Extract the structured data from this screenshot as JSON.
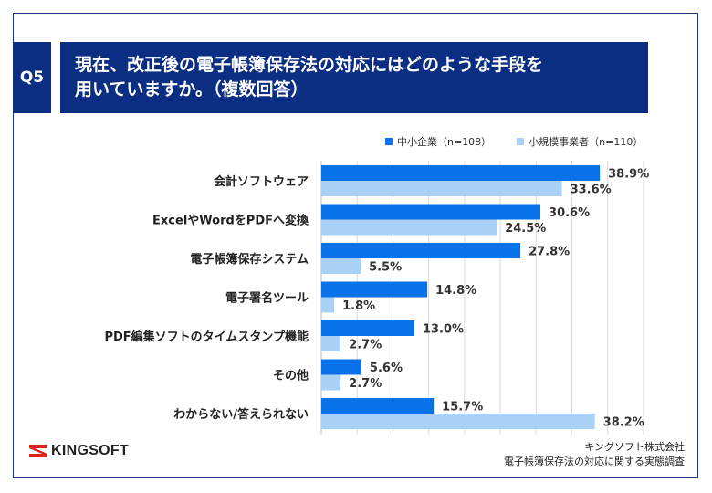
{
  "question": {
    "number": "Q5",
    "title_line1": "現在、改正後の電子帳簿保存法の対応にはどのような手段を",
    "title_line2": "用いていますか。（複数回答）"
  },
  "colors": {
    "series1": "#0a72e8",
    "series2": "#a9d1f5",
    "navy": "#0b2d82",
    "logo_red": "#d7261c"
  },
  "logo": {
    "text": "KINGSOFT"
  },
  "source": {
    "line1": "キングソフト株式会社",
    "line2": "電子帳簿保存法の対応に関する実態調査"
  },
  "chart_data": {
    "type": "bar",
    "orientation": "horizontal",
    "categories": [
      "会計ソフトウェア",
      "ExcelやWordをPDFへ変換",
      "電子帳簿保存システム",
      "電子署名ツール",
      "PDF編集ソフトのタイムスタンプ機能",
      "その他",
      "わからない/答えられない"
    ],
    "series": [
      {
        "name": "中小企業（n=108）",
        "values": [
          38.9,
          30.6,
          27.8,
          14.8,
          13.0,
          5.6,
          15.7
        ],
        "labels": [
          "38.9%",
          "30.6%",
          "27.8%",
          "14.8%",
          "13.0%",
          "5.6%",
          "15.7%"
        ]
      },
      {
        "name": "小規模事業者（n=110）",
        "values": [
          33.6,
          24.5,
          5.5,
          1.8,
          2.7,
          2.7,
          38.2
        ],
        "labels": [
          "33.6%",
          "24.5%",
          "5.5%",
          "1.8%",
          "2.7%",
          "2.7%",
          "38.2%"
        ]
      }
    ],
    "xlim": [
      0,
      45
    ],
    "grid": true,
    "legend_position": "top-right"
  }
}
